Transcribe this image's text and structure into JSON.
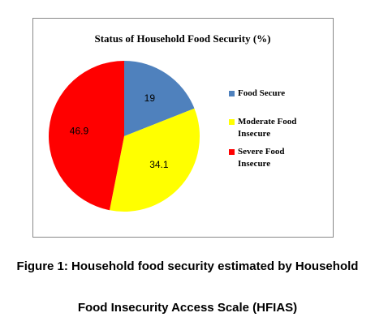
{
  "chart_data": {
    "type": "pie",
    "title": "Status of Household Food Security (%)",
    "categories": [
      "Food Secure",
      "Moderate Food Insecure",
      "Severe Food Insecure"
    ],
    "values": [
      19,
      34.1,
      46.9
    ],
    "colors": [
      "#4f81bd",
      "#ffff00",
      "#ff0000"
    ],
    "legend": "right"
  },
  "caption": [
    "Figure 1: Household food security estimated by Household",
    "Food Insecurity Access Scale (HFIAS)"
  ]
}
